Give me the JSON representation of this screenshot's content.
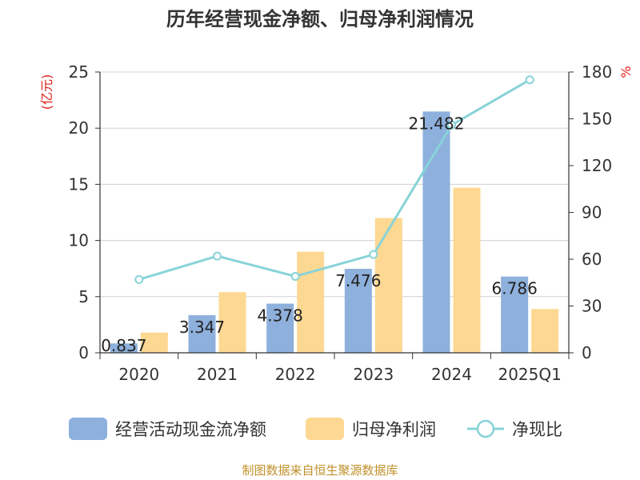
{
  "chart_data": {
    "type": "bar",
    "title": "历年经营现金净额、归母净利润情况",
    "categories": [
      "2020",
      "2021",
      "2022",
      "2023",
      "2024",
      "2025Q1"
    ],
    "y_left": {
      "unit": "(亿元)",
      "min": 0,
      "max": 25,
      "ticks": [
        0,
        5,
        10,
        15,
        20,
        25
      ]
    },
    "y_right": {
      "unit": "%",
      "min": 0,
      "max": 180,
      "ticks": [
        0,
        30,
        60,
        90,
        120,
        150,
        180
      ]
    },
    "series": [
      {
        "name": "经营活动现金流净额",
        "type": "bar",
        "axis": "left",
        "color": "#8eb0dc",
        "values": [
          0.837,
          3.347,
          4.378,
          7.476,
          21.482,
          6.786
        ],
        "labels": [
          "0.837",
          "3.347",
          "4.378",
          "7.476",
          "21.482",
          "6.786"
        ]
      },
      {
        "name": "归母净利润",
        "type": "bar",
        "axis": "left",
        "color": "#fdd892",
        "values": [
          1.8,
          5.4,
          9.0,
          12.0,
          14.7,
          3.9
        ]
      },
      {
        "name": "净现比",
        "type": "line",
        "axis": "right",
        "color": "#88d3d8",
        "values": [
          47,
          62,
          49,
          63,
          146,
          175
        ]
      }
    ],
    "grid": true,
    "legend_position": "bottom",
    "source": "制图数据来自恒生聚源数据库"
  }
}
